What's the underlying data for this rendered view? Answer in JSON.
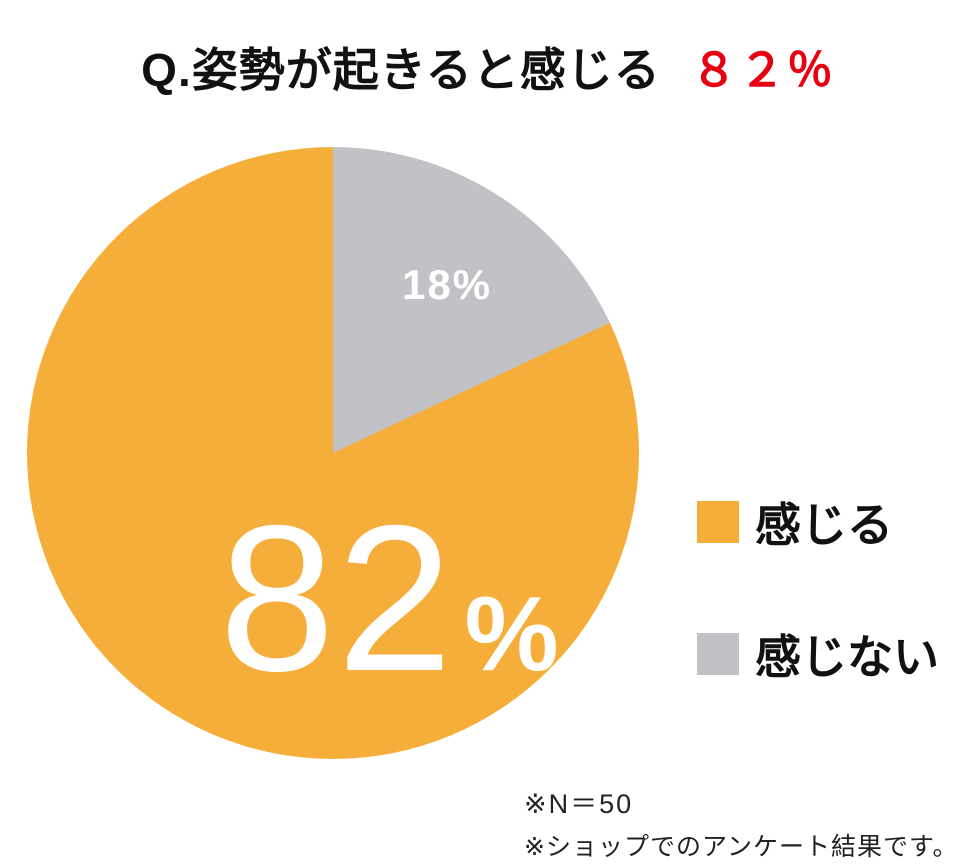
{
  "title": {
    "question": "Q.姿勢が起きると感じる",
    "highlight": "８２％"
  },
  "chart_data": {
    "type": "pie",
    "title": "Q.姿勢が起きると感じる ８２％",
    "categories": [
      "感じる",
      "感じない"
    ],
    "values": [
      82,
      18
    ],
    "unit": "%",
    "colors": [
      "#F6AE3B",
      "#C2C1C6"
    ],
    "start_angle_deg": 0,
    "direction": "clockwise",
    "layout": {
      "legend_position": "right",
      "gray_slice_start": "top-12-oclock",
      "labels_inside_slices": true
    },
    "slice_value_labels": {
      "main_value": "82",
      "main_suffix": "%",
      "secondary": "18%"
    }
  },
  "legend": {
    "items": [
      {
        "label": "感じる"
      },
      {
        "label": "感じない"
      }
    ]
  },
  "footnotes": {
    "sample": "※N＝50",
    "source": "※ショップでのアンケート結果です。"
  },
  "colors": {
    "highlight_red": "#E60012",
    "text_black": "#111111",
    "pie_label_white": "#FFFFFF"
  }
}
